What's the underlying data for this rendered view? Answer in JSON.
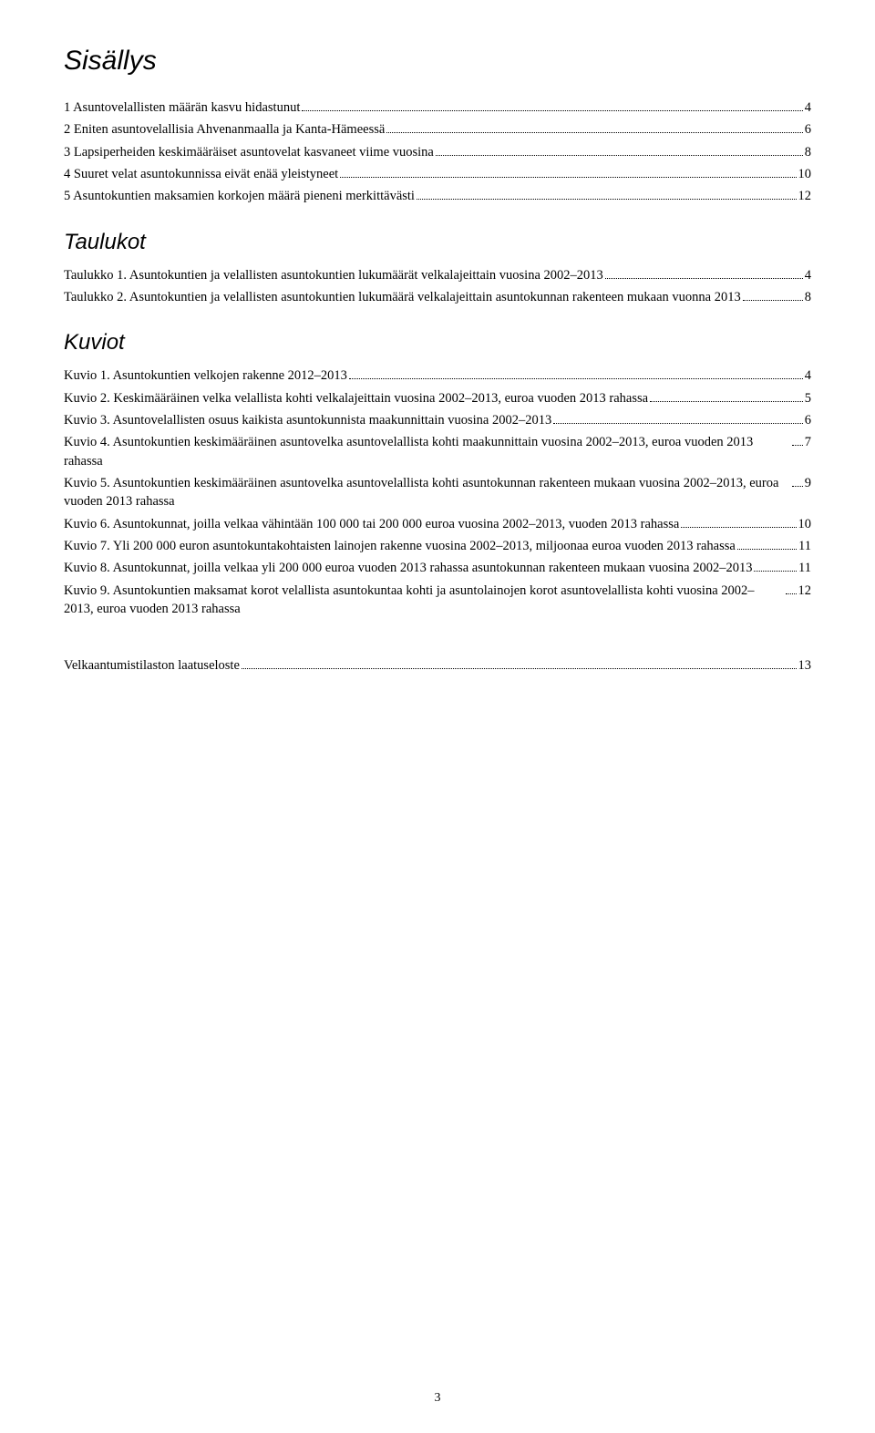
{
  "page": {
    "title": "Sisällys",
    "page_number": "3",
    "colors": {
      "background": "#ffffff",
      "text": "#000000"
    },
    "typography": {
      "title_fontsize": 30,
      "heading_fontsize": 24,
      "body_fontsize": 14.5,
      "title_style": "italic",
      "title_family": "Arial"
    }
  },
  "toc_main": [
    {
      "text": "1 Asuntovelallisten määrän kasvu hidastunut",
      "page": "4"
    },
    {
      "text": "2 Eniten asuntovelallisia Ahvenanmaalla ja Kanta-Hämeessä",
      "page": "6"
    },
    {
      "text": "3 Lapsiperheiden keskimääräiset asuntovelat kasvaneet viime vuosina",
      "page": "8"
    },
    {
      "text": "4 Suuret velat asuntokunnissa eivät enää yleistyneet",
      "page": "10"
    },
    {
      "text": "5 Asuntokuntien maksamien korkojen määrä pieneni merkittävästi",
      "page": "12"
    }
  ],
  "taulukot": {
    "heading": "Taulukot",
    "items": [
      {
        "text": "Taulukko 1. Asuntokuntien ja velallisten asuntokuntien lukumäärät velkalajeittain vuosina 2002–2013",
        "page": "4"
      },
      {
        "text": "Taulukko 2. Asuntokuntien ja velallisten asuntokuntien lukumäärä velkalajeittain asuntokunnan rakenteen mukaan vuonna 2013",
        "page": "8"
      }
    ]
  },
  "kuviot": {
    "heading": "Kuviot",
    "items": [
      {
        "text": "Kuvio 1. Asuntokuntien velkojen rakenne 2012–2013",
        "page": "4"
      },
      {
        "text": "Kuvio 2. Keskimääräinen velka velallista kohti velkalajeittain vuosina 2002–2013, euroa vuoden 2013 rahassa",
        "page": "5"
      },
      {
        "text": "Kuvio 3. Asuntovelallisten osuus kaikista asuntokunnista maakunnittain vuosina 2002–2013",
        "page": "6"
      },
      {
        "text": "Kuvio 4. Asuntokuntien keskimääräinen asuntovelka asuntovelallista kohti maakunnittain vuosina 2002–2013, euroa vuoden 2013 rahassa",
        "page": "7"
      },
      {
        "text": "Kuvio 5. Asuntokuntien keskimääräinen asuntovelka asuntovelallista kohti asuntokunnan rakenteen mukaan vuosina 2002–2013, euroa vuoden 2013 rahassa",
        "page": "9"
      },
      {
        "text": "Kuvio 6. Asuntokunnat, joilla velkaa vähintään 100 000 tai 200 000 euroa vuosina 2002–2013, vuoden 2013 rahassa",
        "page": "10"
      },
      {
        "text": "Kuvio 7. Yli 200 000 euron asuntokuntakohtaisten lainojen rakenne vuosina 2002–2013, miljoonaa euroa vuoden 2013 rahassa",
        "page": "11"
      },
      {
        "text": "Kuvio 8. Asuntokunnat, joilla velkaa yli 200 000 euroa vuoden 2013 rahassa asuntokunnan rakenteen mukaan vuosina 2002–2013",
        "page": "11"
      },
      {
        "text": "Kuvio 9. Asuntokuntien maksamat korot velallista asuntokuntaa kohti ja asuntolainojen korot asuntovelallista kohti vuosina 2002–2013, euroa vuoden 2013 rahassa",
        "page": "12"
      }
    ]
  },
  "bottom": [
    {
      "text": "Velkaantumistilaston laatuseloste",
      "page": "13"
    }
  ]
}
